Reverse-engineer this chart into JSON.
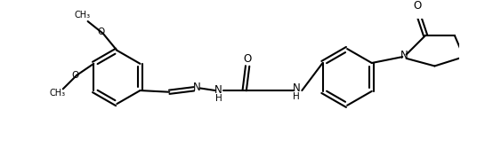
{
  "background_color": "#ffffff",
  "line_color": "#000000",
  "line_width": 1.5,
  "figsize": [
    5.54,
    1.59
  ],
  "dpi": 100,
  "xlim": [
    0,
    554
  ],
  "ylim": [
    0,
    159
  ]
}
